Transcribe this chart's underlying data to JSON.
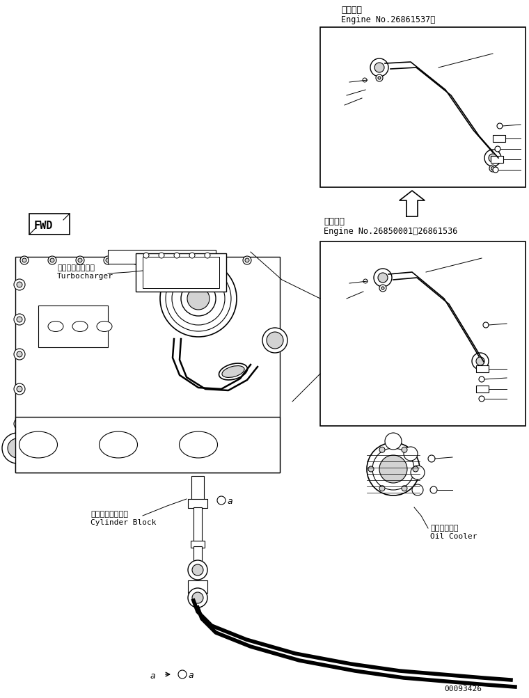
{
  "title_line1_top": "適用号機",
  "title_line2_top": "Engine No.26861537～",
  "title_line1_mid": "適用号機",
  "title_line2_mid": "Engine No.26850001～26861536",
  "label_turbocharger_jp": "ターボチャージャ",
  "label_turbocharger_en": "Turbocharger",
  "label_cylinder_jp": "シリンダブロック",
  "label_cylinder_en": "Cylinder Block",
  "label_oilcooler_jp": "オイルクーラ",
  "label_oilcooler_en": "Oil Cooler",
  "label_fwd": "FWD",
  "watermark": "00093426",
  "bg_color": "#ffffff",
  "line_color": "#000000",
  "font_size_label": 8,
  "font_size_title": 9,
  "font_size_watermark": 8
}
